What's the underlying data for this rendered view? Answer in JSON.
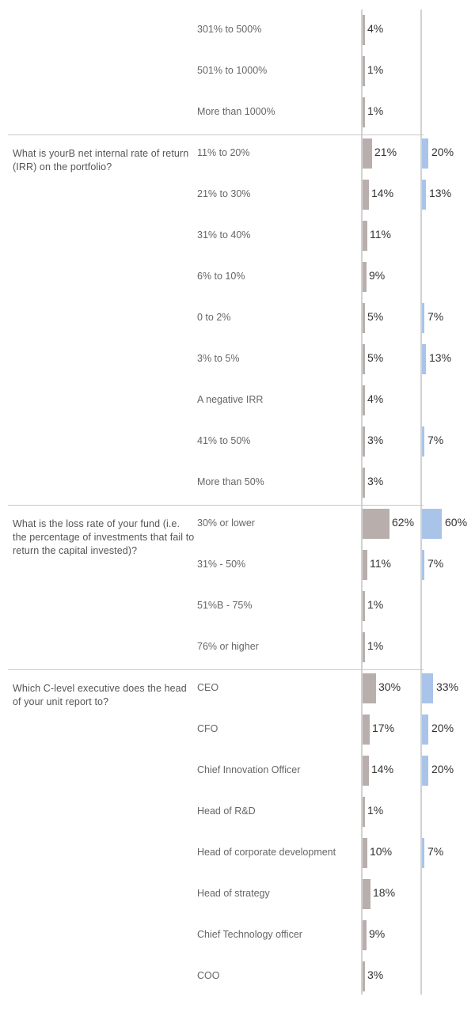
{
  "colors": {
    "series_a": "#b8afac",
    "series_b": "#a9c4e8"
  },
  "chart_data": {
    "type": "bar",
    "orientation": "horizontal",
    "series": [
      {
        "color": "#b8afac"
      },
      {
        "color": "#a9c4e8"
      }
    ],
    "groups": [
      {
        "question": "",
        "rows": [
          {
            "label": "301% to 500%",
            "a": 4,
            "a_label": "4%",
            "b": null,
            "b_label": ""
          },
          {
            "label": "501% to 1000%",
            "a": 1,
            "a_label": "1%",
            "b": null,
            "b_label": ""
          },
          {
            "label": "More than 1000%",
            "a": 1,
            "a_label": "1%",
            "b": null,
            "b_label": ""
          }
        ]
      },
      {
        "question": "What is yourB net internal rate of return (IRR) on the portfolio?",
        "rows": [
          {
            "label": "11% to 20%",
            "a": 21,
            "a_label": "21%",
            "b": 20,
            "b_label": "20%"
          },
          {
            "label": "21% to 30%",
            "a": 14,
            "a_label": "14%",
            "b": 13,
            "b_label": "13%"
          },
          {
            "label": "31% to 40%",
            "a": 11,
            "a_label": "11%",
            "b": null,
            "b_label": ""
          },
          {
            "label": "6% to 10%",
            "a": 9,
            "a_label": "9%",
            "b": null,
            "b_label": ""
          },
          {
            "label": "0 to 2%",
            "a": 5,
            "a_label": "5%",
            "b": 7,
            "b_label": "7%"
          },
          {
            "label": "3% to 5%",
            "a": 5,
            "a_label": "5%",
            "b": 13,
            "b_label": "13%"
          },
          {
            "label": "A negative IRR",
            "a": 4,
            "a_label": "4%",
            "b": null,
            "b_label": ""
          },
          {
            "label": "41% to 50%",
            "a": 3,
            "a_label": "3%",
            "b": 7,
            "b_label": "7%"
          },
          {
            "label": "More than 50%",
            "a": 3,
            "a_label": "3%",
            "b": null,
            "b_label": ""
          }
        ]
      },
      {
        "question": "What is the loss rate of your fund (i.e. the percentage of investments that fail to return the capital invested)?",
        "rows": [
          {
            "label": "30% or lower",
            "a": 62,
            "a_label": "62%",
            "b": 60,
            "b_label": "60%"
          },
          {
            "label": "31% - 50%",
            "a": 11,
            "a_label": "11%",
            "b": 7,
            "b_label": "7%"
          },
          {
            "label": "51%B - 75%",
            "a": 1,
            "a_label": "1%",
            "b": null,
            "b_label": ""
          },
          {
            "label": "76% or higher",
            "a": 1,
            "a_label": "1%",
            "b": null,
            "b_label": ""
          }
        ]
      },
      {
        "question": "Which C-level executive does the head of your unit report to?",
        "rows": [
          {
            "label": "CEO",
            "a": 30,
            "a_label": "30%",
            "b": 33,
            "b_label": "33%"
          },
          {
            "label": "CFO",
            "a": 17,
            "a_label": "17%",
            "b": 20,
            "b_label": "20%"
          },
          {
            "label": "Chief Innovation Officer",
            "a": 14,
            "a_label": "14%",
            "b": 20,
            "b_label": "20%"
          },
          {
            "label": "Head of R&D",
            "a": 1,
            "a_label": "1%",
            "b": null,
            "b_label": ""
          },
          {
            "label": "Head of corporate development",
            "a": 10,
            "a_label": "10%",
            "b": 7,
            "b_label": "7%"
          },
          {
            "label": "Head of strategy",
            "a": 18,
            "a_label": "18%",
            "b": null,
            "b_label": ""
          },
          {
            "label": "Chief Technology officer",
            "a": 9,
            "a_label": "9%",
            "b": null,
            "b_label": ""
          },
          {
            "label": "COO",
            "a": 3,
            "a_label": "3%",
            "b": null,
            "b_label": ""
          }
        ]
      }
    ]
  }
}
